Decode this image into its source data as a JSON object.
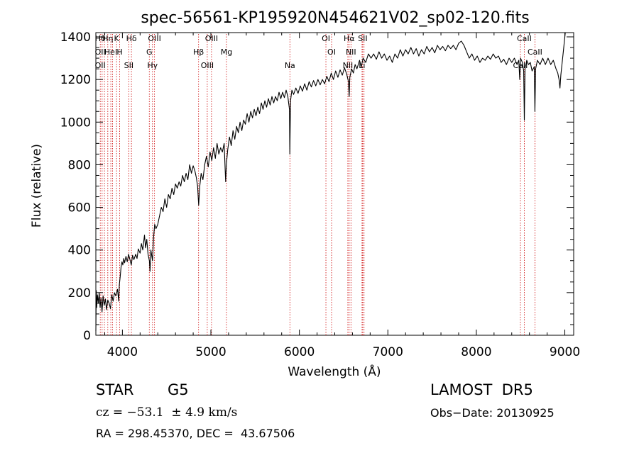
{
  "chart_data": {
    "type": "line",
    "title": "spec-56561-KP195920N454621V02_sp02-120.fits",
    "xlabel": "Wavelength (Å)",
    "ylabel": "Flux (relative)",
    "xlim": [
      3700,
      9100
    ],
    "ylim": [
      0,
      1420
    ],
    "xticks": [
      4000,
      5000,
      6000,
      7000,
      8000,
      9000
    ],
    "yticks": [
      0,
      200,
      400,
      600,
      800,
      1000,
      1200,
      1400
    ],
    "grid": false,
    "line_color": "#000000",
    "marker_color": "#cc0000",
    "series": [
      {
        "points": [
          [
            3700,
            20
          ],
          [
            3705,
            210
          ],
          [
            3710,
            130
          ],
          [
            3718,
            190
          ],
          [
            3728,
            150
          ],
          [
            3738,
            200
          ],
          [
            3748,
            130
          ],
          [
            3758,
            175
          ],
          [
            3770,
            110
          ],
          [
            3782,
            185
          ],
          [
            3795,
            140
          ],
          [
            3808,
            170
          ],
          [
            3820,
            120
          ],
          [
            3835,
            165
          ],
          [
            3850,
            150
          ],
          [
            3865,
            125
          ],
          [
            3880,
            190
          ],
          [
            3895,
            160
          ],
          [
            3910,
            200
          ],
          [
            3925,
            185
          ],
          [
            3945,
            215
          ],
          [
            3958,
            160
          ],
          [
            3965,
            235
          ],
          [
            3975,
            275
          ],
          [
            3985,
            320
          ],
          [
            3995,
            345
          ],
          [
            4005,
            330
          ],
          [
            4015,
            360
          ],
          [
            4025,
            340
          ],
          [
            4040,
            370
          ],
          [
            4055,
            345
          ],
          [
            4070,
            380
          ],
          [
            4085,
            355
          ],
          [
            4100,
            330
          ],
          [
            4115,
            375
          ],
          [
            4130,
            355
          ],
          [
            4150,
            380
          ],
          [
            4165,
            360
          ],
          [
            4180,
            405
          ],
          [
            4200,
            385
          ],
          [
            4215,
            430
          ],
          [
            4230,
            400
          ],
          [
            4250,
            470
          ],
          [
            4262,
            410
          ],
          [
            4275,
            450
          ],
          [
            4290,
            380
          ],
          [
            4305,
            350
          ],
          [
            4312,
            300
          ],
          [
            4322,
            400
          ],
          [
            4340,
            350
          ],
          [
            4352,
            460
          ],
          [
            4365,
            520
          ],
          [
            4380,
            500
          ],
          [
            4400,
            520
          ],
          [
            4420,
            560
          ],
          [
            4440,
            600
          ],
          [
            4460,
            580
          ],
          [
            4480,
            640
          ],
          [
            4500,
            600
          ],
          [
            4520,
            660
          ],
          [
            4540,
            640
          ],
          [
            4560,
            690
          ],
          [
            4580,
            660
          ],
          [
            4600,
            710
          ],
          [
            4620,
            690
          ],
          [
            4640,
            720
          ],
          [
            4660,
            700
          ],
          [
            4680,
            750
          ],
          [
            4700,
            720
          ],
          [
            4720,
            760
          ],
          [
            4740,
            730
          ],
          [
            4760,
            800
          ],
          [
            4780,
            760
          ],
          [
            4800,
            795
          ],
          [
            4820,
            770
          ],
          [
            4835,
            740
          ],
          [
            4850,
            700
          ],
          [
            4862,
            610
          ],
          [
            4875,
            700
          ],
          [
            4890,
            760
          ],
          [
            4910,
            730
          ],
          [
            4930,
            800
          ],
          [
            4950,
            840
          ],
          [
            4970,
            790
          ],
          [
            4990,
            860
          ],
          [
            5010,
            820
          ],
          [
            5030,
            880
          ],
          [
            5050,
            830
          ],
          [
            5070,
            900
          ],
          [
            5090,
            850
          ],
          [
            5110,
            880
          ],
          [
            5130,
            860
          ],
          [
            5150,
            900
          ],
          [
            5167,
            720
          ],
          [
            5175,
            800
          ],
          [
            5190,
            870
          ],
          [
            5210,
            930
          ],
          [
            5230,
            890
          ],
          [
            5250,
            960
          ],
          [
            5270,
            920
          ],
          [
            5290,
            980
          ],
          [
            5310,
            950
          ],
          [
            5330,
            1000
          ],
          [
            5350,
            960
          ],
          [
            5370,
            1010
          ],
          [
            5390,
            990
          ],
          [
            5410,
            1040
          ],
          [
            5430,
            1000
          ],
          [
            5450,
            1050
          ],
          [
            5470,
            1020
          ],
          [
            5490,
            1060
          ],
          [
            5510,
            1030
          ],
          [
            5530,
            1070
          ],
          [
            5550,
            1040
          ],
          [
            5570,
            1090
          ],
          [
            5590,
            1060
          ],
          [
            5610,
            1100
          ],
          [
            5630,
            1070
          ],
          [
            5650,
            1110
          ],
          [
            5670,
            1080
          ],
          [
            5690,
            1120
          ],
          [
            5710,
            1090
          ],
          [
            5730,
            1120
          ],
          [
            5750,
            1100
          ],
          [
            5770,
            1140
          ],
          [
            5790,
            1110
          ],
          [
            5810,
            1140
          ],
          [
            5830,
            1115
          ],
          [
            5850,
            1150
          ],
          [
            5870,
            1120
          ],
          [
            5888,
            1060
          ],
          [
            5892,
            850
          ],
          [
            5900,
            1100
          ],
          [
            5915,
            1150
          ],
          [
            5935,
            1130
          ],
          [
            5960,
            1160
          ],
          [
            5985,
            1135
          ],
          [
            6010,
            1170
          ],
          [
            6035,
            1145
          ],
          [
            6060,
            1180
          ],
          [
            6085,
            1150
          ],
          [
            6110,
            1190
          ],
          [
            6135,
            1165
          ],
          [
            6160,
            1195
          ],
          [
            6185,
            1170
          ],
          [
            6210,
            1200
          ],
          [
            6235,
            1175
          ],
          [
            6260,
            1200
          ],
          [
            6285,
            1180
          ],
          [
            6310,
            1215
          ],
          [
            6335,
            1190
          ],
          [
            6360,
            1230
          ],
          [
            6385,
            1200
          ],
          [
            6410,
            1240
          ],
          [
            6435,
            1210
          ],
          [
            6460,
            1245
          ],
          [
            6485,
            1220
          ],
          [
            6510,
            1255
          ],
          [
            6535,
            1225
          ],
          [
            6555,
            1190
          ],
          [
            6563,
            1120
          ],
          [
            6570,
            1210
          ],
          [
            6590,
            1250
          ],
          [
            6610,
            1230
          ],
          [
            6630,
            1270
          ],
          [
            6650,
            1250
          ],
          [
            6680,
            1290
          ],
          [
            6700,
            1260
          ],
          [
            6720,
            1300
          ],
          [
            6750,
            1280
          ],
          [
            6780,
            1320
          ],
          [
            6810,
            1300
          ],
          [
            6840,
            1320
          ],
          [
            6870,
            1295
          ],
          [
            6900,
            1330
          ],
          [
            6930,
            1300
          ],
          [
            6960,
            1320
          ],
          [
            6990,
            1290
          ],
          [
            7020,
            1310
          ],
          [
            7050,
            1280
          ],
          [
            7080,
            1320
          ],
          [
            7110,
            1300
          ],
          [
            7140,
            1340
          ],
          [
            7170,
            1310
          ],
          [
            7200,
            1340
          ],
          [
            7230,
            1320
          ],
          [
            7260,
            1350
          ],
          [
            7290,
            1320
          ],
          [
            7320,
            1345
          ],
          [
            7350,
            1310
          ],
          [
            7380,
            1340
          ],
          [
            7410,
            1320
          ],
          [
            7440,
            1355
          ],
          [
            7470,
            1330
          ],
          [
            7500,
            1350
          ],
          [
            7530,
            1325
          ],
          [
            7560,
            1360
          ],
          [
            7590,
            1340
          ],
          [
            7620,
            1355
          ],
          [
            7650,
            1335
          ],
          [
            7680,
            1360
          ],
          [
            7710,
            1345
          ],
          [
            7740,
            1360
          ],
          [
            7770,
            1340
          ],
          [
            7800,
            1370
          ],
          [
            7830,
            1380
          ],
          [
            7860,
            1360
          ],
          [
            7890,
            1330
          ],
          [
            7920,
            1300
          ],
          [
            7950,
            1320
          ],
          [
            7980,
            1290
          ],
          [
            8010,
            1310
          ],
          [
            8040,
            1280
          ],
          [
            8070,
            1300
          ],
          [
            8100,
            1290
          ],
          [
            8130,
            1310
          ],
          [
            8160,
            1295
          ],
          [
            8190,
            1320
          ],
          [
            8220,
            1300
          ],
          [
            8250,
            1310
          ],
          [
            8280,
            1280
          ],
          [
            8310,
            1295
          ],
          [
            8340,
            1270
          ],
          [
            8370,
            1300
          ],
          [
            8400,
            1280
          ],
          [
            8430,
            1300
          ],
          [
            8460,
            1270
          ],
          [
            8480,
            1290
          ],
          [
            8490,
            1200
          ],
          [
            8500,
            1300
          ],
          [
            8520,
            1280
          ],
          [
            8535,
            1240
          ],
          [
            8542,
            1010
          ],
          [
            8550,
            1250
          ],
          [
            8570,
            1290
          ],
          [
            8590,
            1270
          ],
          [
            8610,
            1280
          ],
          [
            8630,
            1240
          ],
          [
            8655,
            1260
          ],
          [
            8662,
            1050
          ],
          [
            8670,
            1250
          ],
          [
            8690,
            1290
          ],
          [
            8720,
            1270
          ],
          [
            8750,
            1300
          ],
          [
            8780,
            1270
          ],
          [
            8810,
            1300
          ],
          [
            8840,
            1270
          ],
          [
            8870,
            1290
          ],
          [
            8900,
            1250
          ],
          [
            8920,
            1230
          ],
          [
            8935,
            1200
          ],
          [
            8945,
            1160
          ],
          [
            8955,
            1220
          ],
          [
            8970,
            1280
          ],
          [
            8985,
            1340
          ],
          [
            8995,
            1380
          ],
          [
            9005,
            1420
          ]
        ]
      }
    ],
    "lines": [
      {
        "w": 3750,
        "labels": [
          "Hθ",
          "OII",
          "OII"
        ]
      },
      {
        "w": 3771,
        "labels": []
      },
      {
        "w": 3797,
        "labels": []
      },
      {
        "w": 3835,
        "labels": [
          "Hη"
        ]
      },
      {
        "w": 3869,
        "labels": [
          "HeI"
        ]
      },
      {
        "w": 3889,
        "labels": []
      },
      {
        "w": 3934,
        "labels": [
          "K"
        ]
      },
      {
        "w": 3969,
        "labels": [
          "H"
        ]
      },
      {
        "w": 4072,
        "labels": [
          "SII"
        ]
      },
      {
        "w": 4102,
        "labels": [
          "Hδ"
        ]
      },
      {
        "w": 4304,
        "labels": [
          "G"
        ]
      },
      {
        "w": 4340,
        "labels": [
          "Hγ"
        ]
      },
      {
        "w": 4363,
        "labels": [
          "OIII"
        ]
      },
      {
        "w": 4861,
        "labels": [
          "Hβ"
        ]
      },
      {
        "w": 4959,
        "labels": [
          "OIII"
        ]
      },
      {
        "w": 5007,
        "labels": [
          "OIII"
        ]
      },
      {
        "w": 5176,
        "labels": [
          "Mg"
        ]
      },
      {
        "w": 5893,
        "labels": [
          "Na"
        ]
      },
      {
        "w": 6300,
        "labels": [
          "OI"
        ]
      },
      {
        "w": 6364,
        "labels": [
          "OI"
        ]
      },
      {
        "w": 6548,
        "labels": [
          "NII"
        ]
      },
      {
        "w": 6563,
        "labels": [
          "Hα"
        ]
      },
      {
        "w": 6583,
        "labels": [
          "NII"
        ]
      },
      {
        "w": 6708,
        "labels": [
          "Li"
        ]
      },
      {
        "w": 6716,
        "labels": [
          "SII"
        ]
      },
      {
        "w": 6731,
        "labels": []
      },
      {
        "w": 8498,
        "labels": [
          "CaII"
        ]
      },
      {
        "w": 8542,
        "labels": [
          "CaII"
        ]
      },
      {
        "w": 8662,
        "labels": [
          "CaII"
        ]
      }
    ]
  },
  "info": {
    "class": "STAR",
    "subclass": "G5",
    "survey": "LAMOST  DR5",
    "cz": "cz = −53.1  ± 4.9 km/s",
    "obs_date": "Obs−Date: 20130925",
    "coords": "RA = 298.45370, DEC =  43.67506"
  }
}
